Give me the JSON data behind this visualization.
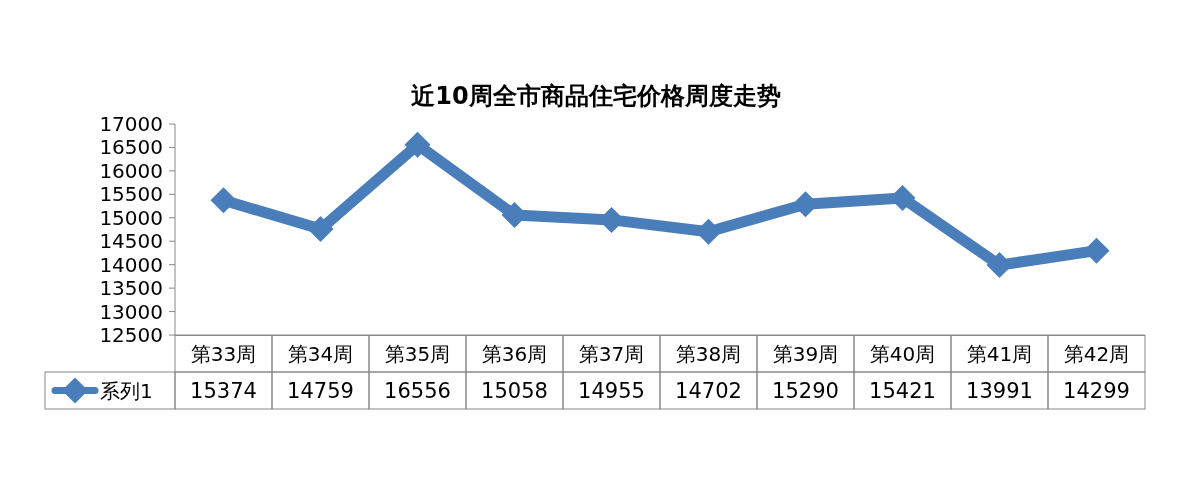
{
  "chart_data": {
    "type": "line",
    "title": "近10周全市商品住宅价格周度走势",
    "categories": [
      "第33周",
      "第34周",
      "第35周",
      "第36周",
      "第37周",
      "第38周",
      "第39周",
      "第40周",
      "第41周",
      "第42周"
    ],
    "series": [
      {
        "name": "系列1",
        "color": "#4a7ebb",
        "values": [
          15374,
          14759,
          16556,
          15058,
          14955,
          14702,
          15290,
          15421,
          13991,
          14299
        ]
      }
    ],
    "ylim": [
      12500,
      17000
    ],
    "yticks": [
      12500,
      13000,
      13500,
      14000,
      14500,
      15000,
      15500,
      16000,
      16500,
      17000
    ],
    "marker": "diamond",
    "line_style": "solid",
    "data_labels": true,
    "legend": "bottom"
  }
}
